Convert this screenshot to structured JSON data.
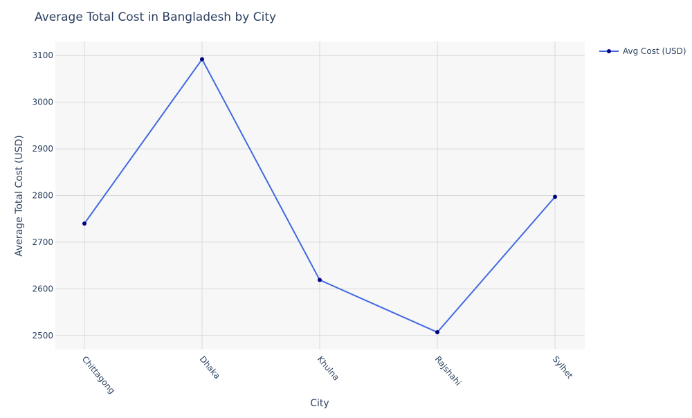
{
  "chart_data": {
    "type": "line",
    "title": "Average Total Cost in Bangladesh by City",
    "xlabel": "City",
    "ylabel": "Average Total Cost (USD)",
    "categories": [
      "Chittagong",
      "Dhaka",
      "Khulna",
      "Rajshahi",
      "Sylhet"
    ],
    "series": [
      {
        "name": "Avg Cost (USD)",
        "values": [
          2740,
          3092,
          2619,
          2507,
          2797
        ],
        "line_color": "#4169e1",
        "marker_color": "#000080"
      }
    ],
    "ylim": [
      2470,
      3130
    ],
    "yticks": [
      2500,
      2600,
      2700,
      2800,
      2900,
      3000,
      3100
    ],
    "grid": true,
    "legend_position": "top-right",
    "plot_background": "#f7f7f7",
    "grid_color": "#d9d9d9"
  }
}
